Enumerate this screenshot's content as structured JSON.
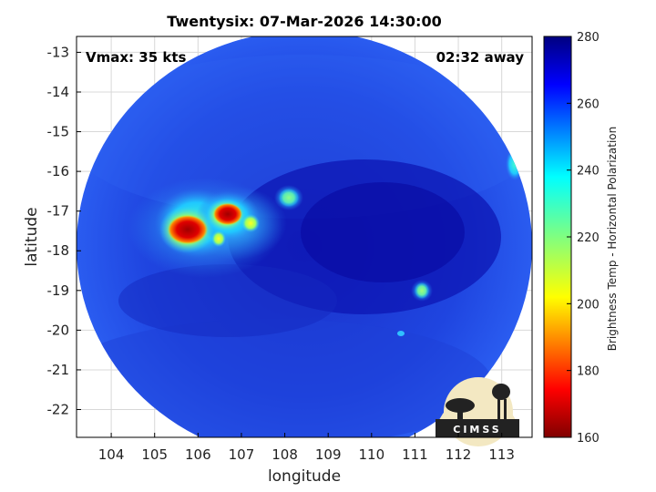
{
  "title": "Twentysix: 07-Mar-2026 14:30:00",
  "annotations": {
    "vmax": "Vmax: 35 kts",
    "time_away": "02:32 away"
  },
  "logo": {
    "text": "CIMSS"
  },
  "colors": {
    "disk_base": "#1f3fdc",
    "eye_region": "#0a0aa8",
    "frame": "#000000"
  },
  "chart_data": {
    "type": "heatmap",
    "title": "Twentysix: 07-Mar-2026 14:30:00",
    "xlabel": "longitude",
    "ylabel": "latitude",
    "xlim": [
      103.2,
      113.7
    ],
    "ylim": [
      -22.7,
      -12.6
    ],
    "x_ticks": [
      "104",
      "105",
      "106",
      "107",
      "108",
      "109",
      "110",
      "111",
      "112",
      "113"
    ],
    "y_ticks": [
      "-13",
      "-14",
      "-15",
      "-16",
      "-17",
      "-18",
      "-19",
      "-20",
      "-21",
      "-22"
    ],
    "grid": true,
    "colorbar": {
      "label": "Brightness Temp - Horizontal Polarization",
      "range": [
        160,
        280
      ],
      "ticks": [
        "280",
        "260",
        "240",
        "220",
        "200",
        "180",
        "160"
      ],
      "colormap": "jet"
    },
    "features": [
      {
        "name": "cold convection core west",
        "lon": 105.8,
        "lat": -17.5,
        "temp": 172
      },
      {
        "name": "cold convection core east",
        "lon": 106.6,
        "lat": -17.1,
        "temp": 170
      },
      {
        "name": "warm cell north",
        "lon": 108.0,
        "lat": -16.7,
        "temp": 240
      },
      {
        "name": "warm cell east",
        "lon": 111.1,
        "lat": -19.0,
        "temp": 238
      }
    ]
  }
}
